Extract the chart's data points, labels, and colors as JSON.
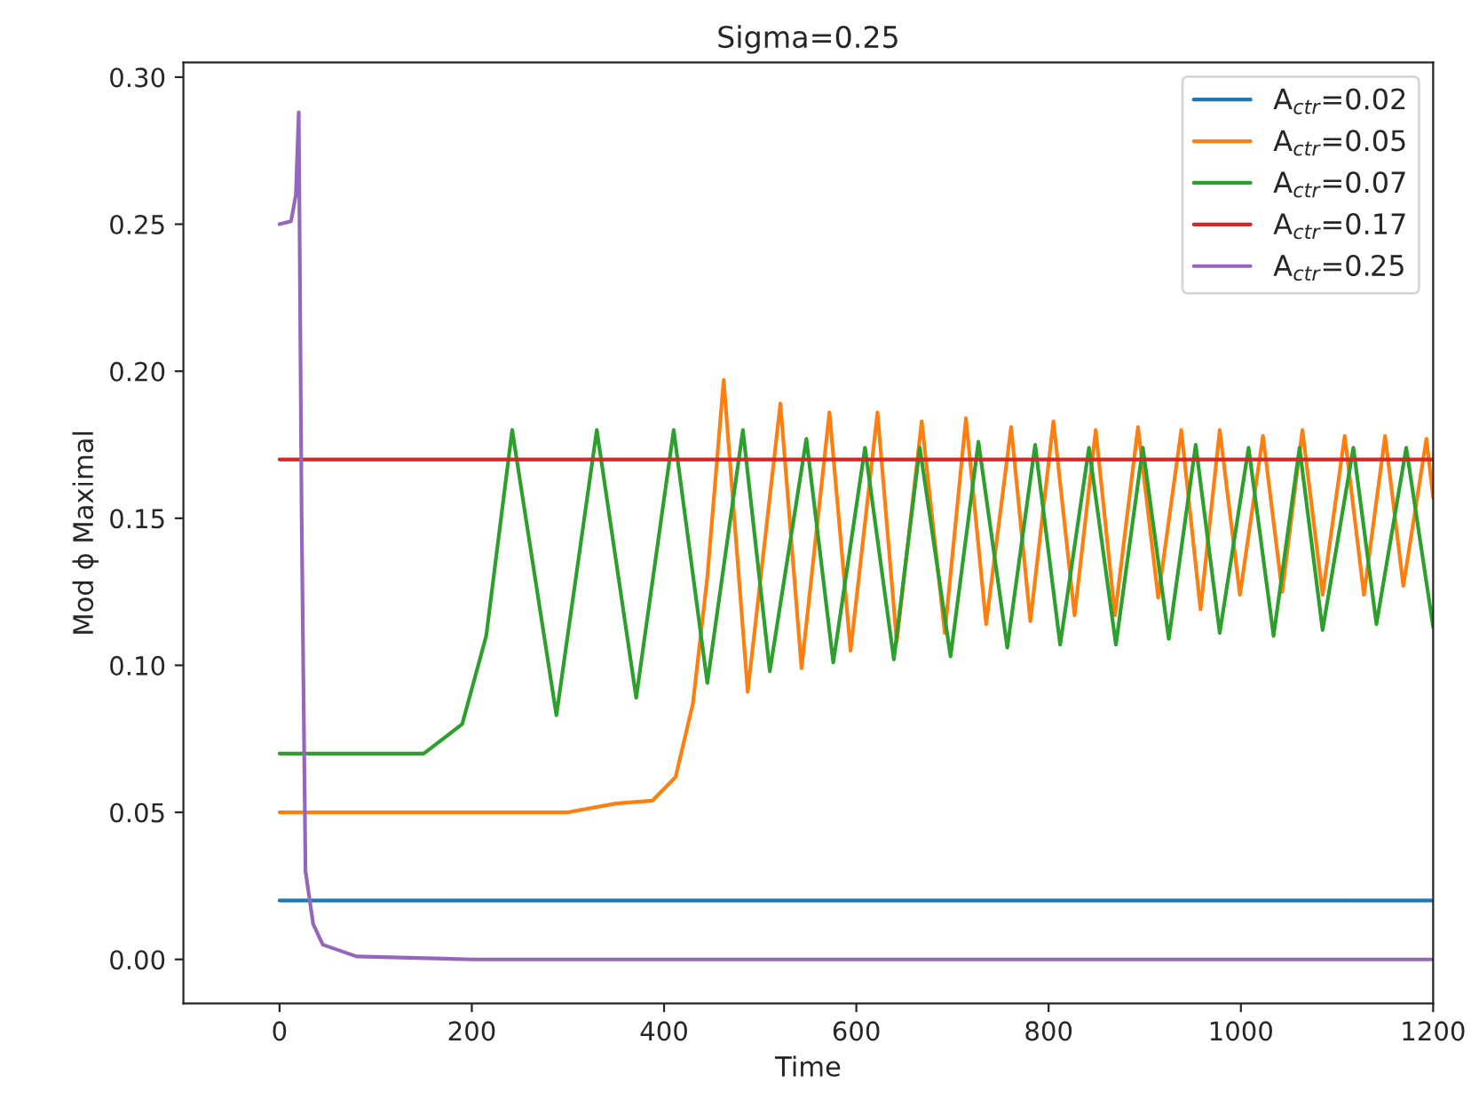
{
  "chart_data": {
    "type": "line",
    "title": "Sigma=0.25",
    "xlabel": "Time",
    "ylabel": "Mod ϕ Maximal",
    "xlim": [
      -100,
      1200
    ],
    "xticks": [
      0,
      200,
      400,
      600,
      800,
      1000,
      1200
    ],
    "ylim": [
      -0.015,
      0.305
    ],
    "yticks": [
      {
        "value": 0,
        "label": "0.00"
      },
      {
        "value": 0.05,
        "label": "0.05"
      },
      {
        "value": 0.1,
        "label": "0.10"
      },
      {
        "value": 0.15,
        "label": "0.15"
      },
      {
        "value": 0.2,
        "label": "0.20"
      },
      {
        "value": 0.25,
        "label": "0.25"
      },
      {
        "value": 0.3,
        "label": "0.30"
      }
    ],
    "grid": false,
    "legend": "top right",
    "line_style": "solid",
    "marker": "none",
    "series": [
      {
        "name": "A$_{ctr}$=0.02",
        "color": "#1f77b4",
        "x": [
          0,
          1200
        ],
        "values": [
          0.02,
          0.02
        ]
      },
      {
        "name": "A$_{ctr}$=0.05",
        "color": "#ff7f0e",
        "x": [
          0,
          300,
          350,
          388,
          412,
          430,
          445,
          462,
          487,
          521,
          543,
          572,
          594,
          622,
          642,
          668,
          692,
          714,
          735,
          761,
          781,
          805,
          827,
          849,
          869,
          893,
          914,
          938,
          958,
          978,
          999,
          1023,
          1043,
          1064,
          1085,
          1108,
          1128,
          1150,
          1169,
          1193,
          1200
        ],
        "values": [
          0.05,
          0.05,
          0.053,
          0.054,
          0.062,
          0.087,
          0.13,
          0.197,
          0.091,
          0.189,
          0.099,
          0.186,
          0.105,
          0.186,
          0.108,
          0.183,
          0.111,
          0.184,
          0.114,
          0.181,
          0.115,
          0.183,
          0.117,
          0.18,
          0.117,
          0.181,
          0.123,
          0.18,
          0.119,
          0.18,
          0.124,
          0.178,
          0.125,
          0.18,
          0.124,
          0.178,
          0.124,
          0.178,
          0.127,
          0.177,
          0.157
        ]
      },
      {
        "name": "A$_{ctr}$=0.07",
        "color": "#2ca02c",
        "x": [
          0,
          150,
          190,
          215,
          242,
          288,
          330,
          371,
          410,
          445,
          482,
          510,
          548,
          576,
          609,
          639,
          666,
          698,
          727,
          757,
          786,
          812,
          842,
          870,
          898,
          925,
          953,
          978,
          1008,
          1034,
          1061,
          1085,
          1117,
          1141,
          1172,
          1200
        ],
        "values": [
          0.07,
          0.07,
          0.08,
          0.11,
          0.18,
          0.083,
          0.18,
          0.089,
          0.18,
          0.094,
          0.18,
          0.098,
          0.177,
          0.101,
          0.174,
          0.102,
          0.174,
          0.103,
          0.176,
          0.106,
          0.175,
          0.107,
          0.174,
          0.107,
          0.174,
          0.109,
          0.175,
          0.111,
          0.174,
          0.11,
          0.174,
          0.112,
          0.174,
          0.114,
          0.174,
          0.113
        ]
      },
      {
        "name": "A$_{ctr}$=0.17",
        "color": "#d62728",
        "x": [
          0,
          1200
        ],
        "values": [
          0.17,
          0.17
        ]
      },
      {
        "name": "A$_{ctr}$=0.25",
        "color": "#9467bd",
        "x": [
          0,
          12,
          17,
          20,
          23,
          27,
          35,
          45,
          80,
          200,
          1200
        ],
        "values": [
          0.25,
          0.251,
          0.26,
          0.288,
          0.15,
          0.03,
          0.012,
          0.005,
          0.001,
          0,
          0
        ]
      }
    ]
  }
}
